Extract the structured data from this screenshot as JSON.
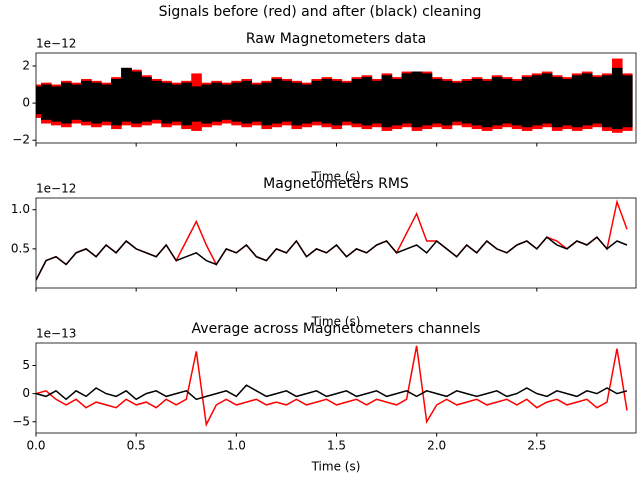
{
  "title": "Signals before (red) and after (black) cleaning",
  "chart_data": [
    {
      "type": "band",
      "title": "Raw Magnetometers data",
      "xlabel": "Time (s)",
      "y_offset_label": "1e−12",
      "x": [
        0,
        0.05,
        0.1,
        0.15,
        0.2,
        0.25,
        0.3,
        0.35,
        0.4,
        0.45,
        0.5,
        0.55,
        0.6,
        0.65,
        0.7,
        0.75,
        0.8,
        0.85,
        0.9,
        0.95,
        1,
        1.05,
        1.1,
        1.15,
        1.2,
        1.25,
        1.3,
        1.35,
        1.4,
        1.45,
        1.5,
        1.55,
        1.6,
        1.65,
        1.7,
        1.75,
        1.8,
        1.85,
        1.9,
        1.95,
        2,
        2.05,
        2.1,
        2.15,
        2.2,
        2.25,
        2.3,
        2.35,
        2.4,
        2.45,
        2.5,
        2.55,
        2.6,
        2.65,
        2.7,
        2.75,
        2.8,
        2.85,
        2.9,
        2.95
      ],
      "series": [
        {
          "color": "red",
          "upper": [
            1.0,
            1.1,
            1.0,
            1.2,
            1.1,
            1.3,
            1.2,
            1.1,
            1.4,
            1.9,
            1.8,
            1.5,
            1.3,
            1.2,
            1.1,
            1.2,
            1.6,
            1.1,
            1.2,
            1.1,
            1.2,
            1.3,
            1.1,
            1.2,
            1.4,
            1.3,
            1.2,
            1.1,
            1.3,
            1.4,
            1.3,
            1.2,
            1.4,
            1.5,
            1.3,
            1.6,
            1.4,
            1.7,
            1.7,
            1.7,
            1.4,
            1.3,
            1.2,
            1.3,
            1.4,
            1.3,
            1.5,
            1.4,
            1.3,
            1.5,
            1.6,
            1.7,
            1.5,
            1.4,
            1.6,
            1.7,
            1.5,
            1.6,
            2.4,
            1.6
          ],
          "lower": [
            -0.8,
            -1.1,
            -1.2,
            -1.3,
            -1.1,
            -1.2,
            -1.3,
            -1.2,
            -1.4,
            -1.2,
            -1.3,
            -1.2,
            -1.1,
            -1.3,
            -1.2,
            -1.4,
            -1.5,
            -1.3,
            -1.2,
            -1.1,
            -1.2,
            -1.3,
            -1.2,
            -1.4,
            -1.3,
            -1.2,
            -1.4,
            -1.3,
            -1.2,
            -1.3,
            -1.4,
            -1.2,
            -1.3,
            -1.4,
            -1.3,
            -1.5,
            -1.4,
            -1.3,
            -1.5,
            -1.4,
            -1.3,
            -1.4,
            -1.2,
            -1.3,
            -1.4,
            -1.5,
            -1.4,
            -1.3,
            -1.4,
            -1.5,
            -1.4,
            -1.3,
            -1.5,
            -1.4,
            -1.5,
            -1.4,
            -1.3,
            -1.5,
            -1.6,
            -1.5
          ]
        },
        {
          "color": "black",
          "upper": [
            0.9,
            1.0,
            0.9,
            1.1,
            1.0,
            1.2,
            1.1,
            1.0,
            1.3,
            1.9,
            1.7,
            1.4,
            1.2,
            1.1,
            1.0,
            1.1,
            0.9,
            1.0,
            1.1,
            1.0,
            1.1,
            1.2,
            1.0,
            1.1,
            1.3,
            1.2,
            1.1,
            1.0,
            1.2,
            1.3,
            1.2,
            1.1,
            1.3,
            1.4,
            1.2,
            1.5,
            1.3,
            1.6,
            1.7,
            1.6,
            1.3,
            1.2,
            1.1,
            1.2,
            1.3,
            1.2,
            1.4,
            1.3,
            1.2,
            1.4,
            1.5,
            1.6,
            1.4,
            1.3,
            1.5,
            1.6,
            1.4,
            1.5,
            1.9,
            1.5
          ],
          "lower": [
            -0.6,
            -0.9,
            -1.0,
            -1.1,
            -0.9,
            -1.0,
            -1.1,
            -1.0,
            -1.2,
            -1.0,
            -1.1,
            -1.0,
            -0.9,
            -1.1,
            -1.0,
            -1.2,
            -1.0,
            -1.1,
            -1.0,
            -0.9,
            -1.0,
            -1.1,
            -1.0,
            -1.2,
            -1.1,
            -1.0,
            -1.2,
            -1.1,
            -1.0,
            -1.1,
            -1.2,
            -1.0,
            -1.1,
            -1.2,
            -1.1,
            -1.3,
            -1.2,
            -1.1,
            -1.3,
            -1.2,
            -1.1,
            -1.2,
            -1.0,
            -1.1,
            -1.2,
            -1.3,
            -1.2,
            -1.1,
            -1.2,
            -1.3,
            -1.2,
            -1.1,
            -1.3,
            -1.2,
            -1.3,
            -1.2,
            -1.1,
            -1.3,
            -1.4,
            -1.3
          ]
        }
      ],
      "xlim": [
        0,
        2.995
      ],
      "xticks": [
        0,
        0.5,
        1,
        1.5,
        2,
        2.5
      ],
      "ylim": [
        -2.15,
        2.7
      ],
      "yticks": [
        {
          "value": -2,
          "label": "−2"
        },
        0,
        2
      ]
    },
    {
      "type": "line",
      "title": "Magnetometers RMS",
      "xlabel": "Time (s)",
      "y_offset_label": "1e−12",
      "x": [
        0,
        0.05,
        0.1,
        0.15,
        0.2,
        0.25,
        0.3,
        0.35,
        0.4,
        0.45,
        0.5,
        0.55,
        0.6,
        0.65,
        0.7,
        0.75,
        0.8,
        0.85,
        0.9,
        0.95,
        1,
        1.05,
        1.1,
        1.15,
        1.2,
        1.25,
        1.3,
        1.35,
        1.4,
        1.45,
        1.5,
        1.55,
        1.6,
        1.65,
        1.7,
        1.75,
        1.8,
        1.85,
        1.9,
        1.95,
        2,
        2.05,
        2.1,
        2.15,
        2.2,
        2.25,
        2.3,
        2.35,
        2.4,
        2.45,
        2.5,
        2.55,
        2.6,
        2.65,
        2.7,
        2.75,
        2.8,
        2.85,
        2.9,
        2.95
      ],
      "series": [
        {
          "color": "red",
          "values": [
            0.1,
            0.35,
            0.4,
            0.3,
            0.45,
            0.5,
            0.4,
            0.55,
            0.45,
            0.6,
            0.5,
            0.45,
            0.4,
            0.55,
            0.35,
            0.6,
            0.85,
            0.55,
            0.3,
            0.5,
            0.45,
            0.55,
            0.4,
            0.35,
            0.5,
            0.45,
            0.6,
            0.4,
            0.5,
            0.45,
            0.55,
            0.4,
            0.5,
            0.45,
            0.55,
            0.6,
            0.45,
            0.7,
            0.95,
            0.6,
            0.6,
            0.5,
            0.4,
            0.55,
            0.45,
            0.6,
            0.5,
            0.45,
            0.55,
            0.6,
            0.5,
            0.65,
            0.6,
            0.5,
            0.6,
            0.55,
            0.65,
            0.5,
            1.1,
            0.75
          ]
        },
        {
          "color": "black",
          "values": [
            0.1,
            0.35,
            0.4,
            0.3,
            0.45,
            0.5,
            0.4,
            0.55,
            0.45,
            0.6,
            0.5,
            0.45,
            0.4,
            0.55,
            0.35,
            0.4,
            0.45,
            0.35,
            0.3,
            0.5,
            0.45,
            0.55,
            0.4,
            0.35,
            0.5,
            0.45,
            0.6,
            0.4,
            0.5,
            0.45,
            0.55,
            0.4,
            0.5,
            0.45,
            0.55,
            0.6,
            0.45,
            0.5,
            0.55,
            0.45,
            0.6,
            0.5,
            0.4,
            0.55,
            0.45,
            0.6,
            0.5,
            0.45,
            0.55,
            0.6,
            0.5,
            0.65,
            0.55,
            0.5,
            0.6,
            0.55,
            0.65,
            0.5,
            0.6,
            0.55
          ]
        }
      ],
      "xlim": [
        0,
        2.995
      ],
      "xticks": [
        0,
        0.5,
        1,
        1.5,
        2,
        2.5
      ],
      "ylim": [
        0.0,
        1.15
      ],
      "yticks": [
        0.5,
        {
          "value": 1,
          "label": "1.0"
        }
      ]
    },
    {
      "type": "line",
      "title": "Average across Magnetometers channels",
      "xlabel": "Time (s)",
      "y_offset_label": "1e−13",
      "x": [
        0,
        0.05,
        0.1,
        0.15,
        0.2,
        0.25,
        0.3,
        0.35,
        0.4,
        0.45,
        0.5,
        0.55,
        0.6,
        0.65,
        0.7,
        0.75,
        0.8,
        0.85,
        0.9,
        0.95,
        1,
        1.05,
        1.1,
        1.15,
        1.2,
        1.25,
        1.3,
        1.35,
        1.4,
        1.45,
        1.5,
        1.55,
        1.6,
        1.65,
        1.7,
        1.75,
        1.8,
        1.85,
        1.9,
        1.95,
        2,
        2.05,
        2.1,
        2.15,
        2.2,
        2.25,
        2.3,
        2.35,
        2.4,
        2.45,
        2.5,
        2.55,
        2.6,
        2.65,
        2.7,
        2.75,
        2.8,
        2.85,
        2.9,
        2.95
      ],
      "series": [
        {
          "color": "red",
          "values": [
            0,
            0.5,
            -1,
            -2,
            -1,
            -2.5,
            -1.5,
            -2,
            -2.5,
            -1,
            -2,
            -1.5,
            -2.5,
            -1,
            -2,
            -1,
            7.5,
            -5.5,
            -2,
            -1,
            -2,
            -1.5,
            -1,
            -2,
            -1.5,
            -2,
            -1,
            -2,
            -1.5,
            -1,
            -2,
            -1.5,
            -1,
            -2,
            -1,
            -1.5,
            -2,
            -1,
            8.5,
            -5,
            -2,
            -1,
            -2,
            -1.5,
            -1,
            -2,
            -1.5,
            -1,
            -2,
            -1,
            -2.5,
            -1.5,
            -1,
            -2,
            -1.5,
            -1,
            -2.5,
            -1.5,
            8,
            -3
          ]
        },
        {
          "color": "black",
          "values": [
            0,
            -0.5,
            0.5,
            -1,
            0.5,
            -0.5,
            1,
            0,
            -0.5,
            0.5,
            -1,
            0,
            0.5,
            -0.5,
            0,
            0.5,
            -1,
            -0.5,
            0,
            0.5,
            -0.5,
            1.5,
            0.5,
            -0.5,
            0,
            0.5,
            -0.5,
            0,
            0.5,
            -0.5,
            0,
            0.5,
            -0.5,
            0,
            0.5,
            -0.5,
            0,
            0.5,
            -0.5,
            0.5,
            0,
            -0.5,
            0.5,
            0,
            -0.5,
            0,
            0.5,
            -0.5,
            0,
            1,
            0,
            -0.5,
            0.5,
            0,
            -0.5,
            0.5,
            0,
            1,
            0,
            0.5
          ]
        }
      ],
      "xlim": [
        0,
        2.995
      ],
      "xticks": [
        {
          "value": 0,
          "label": "0.0"
        },
        0.5,
        {
          "value": 1,
          "label": "1.0"
        },
        1.5,
        {
          "value": 2,
          "label": "2.0"
        },
        2.5
      ],
      "xtick_labels_shown": true,
      "ylim": [
        -7,
        9
      ],
      "yticks": [
        {
          "value": -5,
          "label": "−5"
        },
        0,
        5
      ]
    }
  ]
}
